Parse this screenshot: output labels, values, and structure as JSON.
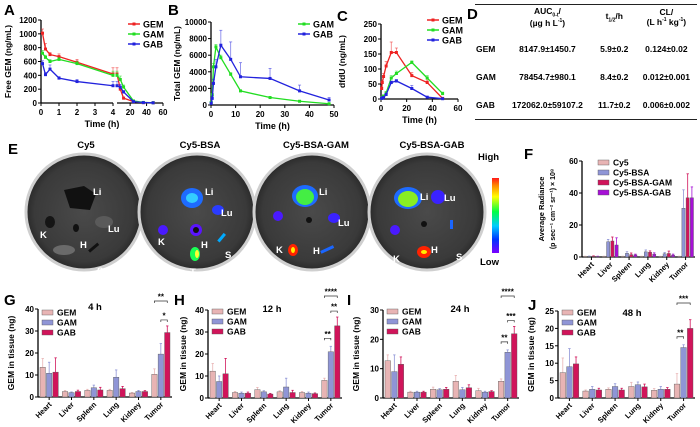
{
  "panel_letters": [
    "A",
    "B",
    "C",
    "D",
    "E",
    "F",
    "G",
    "H",
    "I",
    "J"
  ],
  "colors": {
    "GEM_line": "#ee2222",
    "GAM_line": "#22dd22",
    "GAB_line": "#2222dd",
    "bar_GEM": "#e8b4b4",
    "bar_GAM": "#8f95d6",
    "bar_GAB": "#d0145a",
    "bar_Cy5": "#e8b4b4",
    "bar_Cy5BSA": "#8f95d6",
    "bar_Cy5BSAGAM": "#d0145a",
    "bar_Cy5BSAGAB": "#a610d6"
  },
  "chart_data": [
    {
      "id": "A",
      "type": "line",
      "title": "",
      "xlabel": "Time (h)",
      "ylabel": "Free GEM (ng/mL)",
      "ylim": [
        0,
        1200
      ],
      "yticks": [
        "0",
        "200",
        "400",
        "600",
        "800",
        "1000",
        "1200"
      ],
      "xbreak": true,
      "xticks_left": [
        "0",
        "1",
        "2",
        "3",
        "4"
      ],
      "xticks_right": [
        "20",
        "40",
        "60"
      ],
      "xlim_left": [
        0,
        4
      ],
      "xlim_right": [
        4,
        60
      ],
      "legend": [
        "GEM",
        "GAM",
        "GAB"
      ],
      "legend_position": "top-right",
      "series": [
        {
          "name": "GEM",
          "x": [
            0.083,
            0.25,
            0.5,
            1,
            2,
            4,
            8,
            12,
            24,
            36,
            48
          ],
          "y": [
            1010,
            780,
            700,
            670,
            590,
            420,
            200,
            70,
            20,
            5,
            3
          ],
          "err": [
            60,
            80,
            30,
            40,
            40,
            90,
            40,
            15,
            5,
            2,
            1
          ]
        },
        {
          "name": "GAM",
          "x": [
            0.083,
            0.25,
            0.5,
            1,
            2,
            4,
            8,
            12,
            24,
            36,
            48
          ],
          "y": [
            720,
            660,
            600,
            630,
            570,
            400,
            340,
            230,
            30,
            8,
            4
          ],
          "err": [
            40,
            30,
            30,
            30,
            30,
            60,
            50,
            30,
            5,
            2,
            1
          ]
        },
        {
          "name": "GAB",
          "x": [
            0.083,
            0.25,
            0.5,
            1,
            2,
            4,
            8,
            12,
            24,
            36,
            48
          ],
          "y": [
            570,
            410,
            490,
            360,
            310,
            250,
            230,
            160,
            20,
            6,
            3
          ],
          "err": [
            40,
            30,
            60,
            20,
            30,
            60,
            40,
            20,
            5,
            2,
            1
          ]
        }
      ]
    },
    {
      "id": "B",
      "type": "line",
      "title": "",
      "xlabel": "Time (h)",
      "ylabel": "Total GEM (ng/mL)",
      "ylim": [
        0,
        10000
      ],
      "xlim": [
        0,
        50
      ],
      "yticks": [
        "0",
        "2000",
        "4000",
        "6000",
        "8000",
        "10000"
      ],
      "xticks": [
        "0",
        "10",
        "20",
        "30",
        "40",
        "50"
      ],
      "legend": [
        "GAM",
        "GAB"
      ],
      "legend_position": "top-right",
      "series": [
        {
          "name": "GAM",
          "x": [
            0.083,
            0.5,
            1,
            2,
            4,
            8,
            12,
            24,
            36,
            48
          ],
          "y": [
            300,
            1200,
            4600,
            7000,
            5700,
            3700,
            1700,
            900,
            450,
            150
          ],
          "err": [
            100,
            200,
            400,
            300,
            300,
            200,
            100,
            80,
            50,
            30
          ]
        },
        {
          "name": "GAB",
          "x": [
            0.083,
            0.5,
            1,
            2,
            4,
            8,
            12,
            24,
            36,
            48
          ],
          "y": [
            200,
            800,
            2600,
            4600,
            7200,
            5500,
            3400,
            3200,
            1700,
            600
          ],
          "err": [
            100,
            300,
            500,
            900,
            1800,
            2100,
            1700,
            1200,
            700,
            300
          ]
        }
      ]
    },
    {
      "id": "C",
      "type": "line",
      "title": "",
      "xlabel": "Time (h)",
      "ylabel": "dfdU (ng/mL)",
      "ylim": [
        0,
        250
      ],
      "xlim": [
        0,
        60
      ],
      "yticks": [
        "0",
        "50",
        "100",
        "150",
        "200",
        "250"
      ],
      "xticks": [
        "0",
        "20",
        "40",
        "60"
      ],
      "legend": [
        "GEM",
        "GAM",
        "GAB"
      ],
      "legend_position": "top-right",
      "series": [
        {
          "name": "GEM",
          "x": [
            0.5,
            1,
            2,
            4,
            8,
            12,
            24,
            36,
            48
          ],
          "y": [
            35,
            55,
            75,
            110,
            155,
            155,
            78,
            55,
            2
          ],
          "err": [
            5,
            8,
            10,
            15,
            35,
            15,
            10,
            8,
            2
          ]
        },
        {
          "name": "GAM",
          "x": [
            0.5,
            1,
            2,
            4,
            8,
            12,
            24,
            36,
            48
          ],
          "y": [
            2,
            5,
            10,
            20,
            70,
            85,
            122,
            70,
            18
          ],
          "err": [
            1,
            2,
            3,
            5,
            8,
            8,
            5,
            8,
            5
          ]
        },
        {
          "name": "GAB",
          "x": [
            0.5,
            1,
            2,
            4,
            8,
            12,
            24,
            36,
            48
          ],
          "y": [
            2,
            3,
            5,
            15,
            55,
            60,
            35,
            6,
            1
          ],
          "err": [
            1,
            1,
            2,
            3,
            5,
            5,
            10,
            2,
            1
          ]
        }
      ]
    },
    {
      "id": "D",
      "type": "table",
      "columns": [
        "",
        "AUC0-t/ (µg h L⁻¹)",
        "t1/2/h",
        "CL/ (L h⁻¹ kg⁻¹)"
      ],
      "rows": [
        [
          "GEM",
          "8147.9±1450.7",
          "5.9±0.2",
          "0.124±0.02"
        ],
        [
          "GAM",
          "78454.7±980.1",
          "8.4±0.2",
          "0.012±0.001"
        ],
        [
          "GAB",
          "172062.0±59107.2",
          "11.7±0.2",
          "0.006±0.002"
        ]
      ]
    },
    {
      "id": "F",
      "type": "bar",
      "title": "",
      "xlabel": "",
      "ylabel": "Average Radiance (p sec⁻¹ cm⁻² sr⁻¹) × 10⁸",
      "ylim": [
        0,
        60
      ],
      "yticks": [
        "0",
        "20",
        "40",
        "60"
      ],
      "categories": [
        "Heart",
        "Liver",
        "Spleen",
        "Lung",
        "Kidney",
        "Tumor"
      ],
      "legend_position": "top-left",
      "series": [
        {
          "name": "Cy5",
          "values": [
            0.3,
            0.3,
            0.3,
            0.3,
            0.3,
            0.3
          ],
          "err": [
            0.2,
            0.2,
            0.2,
            0.2,
            0.2,
            0.2
          ]
        },
        {
          "name": "Cy5-BSA",
          "values": [
            0.4,
            9.5,
            2.3,
            3.2,
            2.0,
            30.5
          ],
          "err": [
            0.2,
            1.5,
            1.0,
            1.2,
            0.8,
            11.5
          ]
        },
        {
          "name": "Cy5-BSA-GAM",
          "values": [
            0.5,
            10.0,
            1.5,
            3.0,
            2.2,
            37.0
          ],
          "err": [
            0.2,
            2.5,
            1.0,
            0.8,
            1.5,
            15.0
          ]
        },
        {
          "name": "Cy5-BSA-GAB",
          "values": [
            0.3,
            7.5,
            1.3,
            1.8,
            1.2,
            37.0
          ],
          "err": [
            0.2,
            4.5,
            0.5,
            0.8,
            0.6,
            6.8
          ]
        }
      ]
    },
    {
      "id": "G",
      "type": "bar",
      "title": "4 h",
      "ylabel": "GEM in tissue (ng)",
      "ylim": [
        0,
        40
      ],
      "yticks": [
        "0",
        "10",
        "20",
        "30",
        "40"
      ],
      "categories": [
        "Heart",
        "Liver",
        "Spleen",
        "Lung",
        "Kidney",
        "Tumor"
      ],
      "legend_position": "top-left",
      "series": [
        {
          "name": "GEM",
          "values": [
            13.5,
            2.5,
            3.0,
            3.0,
            1.8,
            10.3
          ],
          "err": [
            4.0,
            0.5,
            0.5,
            0.5,
            0.3,
            2.5
          ]
        },
        {
          "name": "GAM",
          "values": [
            10.8,
            2.0,
            4.2,
            9.0,
            2.5,
            19.5
          ],
          "err": [
            5.0,
            0.3,
            1.2,
            3.3,
            0.5,
            4.8
          ]
        },
        {
          "name": "GAB",
          "values": [
            11.3,
            2.5,
            3.2,
            3.8,
            2.5,
            29.3
          ],
          "err": [
            6.5,
            0.6,
            1.2,
            1.0,
            0.4,
            3.0
          ]
        }
      ],
      "annotations": [
        {
          "label": "**",
          "between": [
            "GEM",
            "GAB"
          ],
          "category": "Tumor"
        },
        {
          "label": "*",
          "between": [
            "GAM",
            "GAB"
          ],
          "category": "Tumor"
        }
      ]
    },
    {
      "id": "H",
      "type": "bar",
      "title": "12 h",
      "ylabel": "GEM in tissue (ng)",
      "ylim": [
        0,
        40
      ],
      "yticks": [
        "0",
        "10",
        "20",
        "30",
        "40"
      ],
      "categories": [
        "Heart",
        "Liver",
        "Spleen",
        "Lung",
        "Kidney",
        "Tumor"
      ],
      "legend_position": "top-left",
      "series": [
        {
          "name": "GEM",
          "values": [
            12.2,
            2.5,
            3.8,
            2.8,
            2.5,
            8.0
          ],
          "err": [
            3.5,
            0.5,
            1.0,
            0.5,
            0.5,
            1.0
          ]
        },
        {
          "name": "GAM",
          "values": [
            7.5,
            2.2,
            2.8,
            5.0,
            2.2,
            21.0
          ],
          "err": [
            2.5,
            0.5,
            0.5,
            4.0,
            0.5,
            2.5
          ]
        },
        {
          "name": "GAB",
          "values": [
            11.0,
            2.2,
            1.8,
            2.5,
            2.0,
            32.8
          ],
          "err": [
            7.0,
            0.5,
            0.3,
            1.0,
            0.3,
            4.0
          ]
        }
      ],
      "annotations": [
        {
          "label": "****",
          "between": [
            "GEM",
            "GAB"
          ],
          "category": "Tumor"
        },
        {
          "label": "**",
          "between": [
            "GAM",
            "GAB"
          ],
          "category": "Tumor"
        },
        {
          "label": "**",
          "between": [
            "GEM",
            "GAM"
          ],
          "category": "Tumor"
        }
      ]
    },
    {
      "id": "I",
      "type": "bar",
      "title": "24 h",
      "ylabel": "GEM in tissue (ng)",
      "ylim": [
        0,
        30
      ],
      "yticks": [
        "0",
        "10",
        "20",
        "30"
      ],
      "categories": [
        "Heart",
        "Liver",
        "Spleen",
        "Lung",
        "Kidney",
        "Tumor"
      ],
      "legend_position": "top-left",
      "series": [
        {
          "name": "GEM",
          "values": [
            12.7,
            2.0,
            3.0,
            5.7,
            2.5,
            5.7
          ],
          "err": [
            2.0,
            0.3,
            0.7,
            2.0,
            0.8,
            0.8
          ]
        },
        {
          "name": "GAM",
          "values": [
            9.0,
            2.0,
            2.8,
            2.8,
            2.0,
            15.6
          ],
          "err": [
            5.7,
            0.3,
            0.4,
            0.8,
            0.3,
            0.8
          ]
        },
        {
          "name": "GAB",
          "values": [
            11.5,
            2.0,
            3.0,
            3.5,
            2.2,
            21.9
          ],
          "err": [
            2.5,
            0.3,
            0.6,
            1.0,
            0.3,
            2.5
          ]
        }
      ],
      "annotations": [
        {
          "label": "****",
          "between": [
            "GEM",
            "GAB"
          ],
          "category": "Tumor"
        },
        {
          "label": "***",
          "between": [
            "GAM",
            "GAB"
          ],
          "category": "Tumor"
        },
        {
          "label": "**",
          "between": [
            "GEM",
            "GAM"
          ],
          "category": "Tumor"
        }
      ]
    },
    {
      "id": "J",
      "type": "bar",
      "title": "48 h",
      "ylabel": "GEM in tissue (ng)",
      "ylim": [
        0,
        25
      ],
      "yticks": [
        "0",
        "5",
        "10",
        "15",
        "20",
        "25"
      ],
      "categories": [
        "Heart",
        "Liver",
        "Spleen",
        "Lung",
        "Kidney",
        "Tumor"
      ],
      "legend_position": "top-left",
      "series": [
        {
          "name": "GEM",
          "values": [
            7.3,
            2.0,
            2.5,
            3.3,
            2.2,
            4.0
          ],
          "err": [
            4.2,
            0.3,
            0.4,
            1.2,
            0.5,
            3.0
          ]
        },
        {
          "name": "GAM",
          "values": [
            9.0,
            2.5,
            3.3,
            3.8,
            2.5,
            14.5
          ],
          "err": [
            5.2,
            0.8,
            0.8,
            0.8,
            0.8,
            0.8
          ]
        },
        {
          "name": "GAB",
          "values": [
            9.8,
            2.3,
            2.3,
            3.2,
            2.5,
            20.0
          ],
          "err": [
            2.0,
            0.5,
            0.5,
            0.8,
            0.5,
            2.5
          ]
        }
      ],
      "annotations": [
        {
          "label": "***",
          "between": [
            "GEM",
            "GAB"
          ],
          "category": "Tumor"
        },
        {
          "label": "**",
          "between": [
            "GEM",
            "GAM"
          ],
          "category": "Tumor"
        }
      ]
    }
  ],
  "table_D": {
    "headers": {
      "auc_main": "AUC",
      "auc_sub": "0-t",
      "auc_unit": "(µg h L",
      "auc_unit_sup": "-1",
      "auc_close": ")",
      "t_main": "t",
      "t_sub": "1/2",
      "t_unit": "/h",
      "cl_main": "CL/",
      "cl_unit1": "(L h",
      "cl_unit1_sup": "-1",
      "cl_unit2": " kg",
      "cl_unit2_sup": "-1",
      "cl_close": ")"
    },
    "rows": [
      {
        "name": "GEM",
        "auc": "8147.9±1450.7",
        "t": "5.9±0.2",
        "cl": "0.124±0.02"
      },
      {
        "name": "GAM",
        "auc": "78454.7±980.1",
        "t": "8.4±0.2",
        "cl": "0.012±0.001"
      },
      {
        "name": "GAB",
        "auc": "172062.0±59107.2",
        "t": "11.7±0.2",
        "cl": "0.006±0.002"
      }
    ]
  },
  "panel_E": {
    "dishes": [
      {
        "title": "Cy5",
        "organs": [
          "Li",
          "Lu",
          "K",
          "H",
          "T",
          "S"
        ]
      },
      {
        "title": "Cy5-BSA",
        "organs": [
          "Li",
          "Lu",
          "K",
          "H",
          "T",
          "S"
        ]
      },
      {
        "title": "Cy5-BSA-GAM",
        "organs": [
          "Li",
          "Lu",
          "K",
          "H",
          "T",
          "S"
        ]
      },
      {
        "title": "Cy5-BSA-GAB",
        "organs": [
          "Li",
          "Lu",
          "K",
          "H",
          "T",
          "S"
        ]
      }
    ],
    "colorbar": {
      "high": "High",
      "low": "Low"
    }
  }
}
